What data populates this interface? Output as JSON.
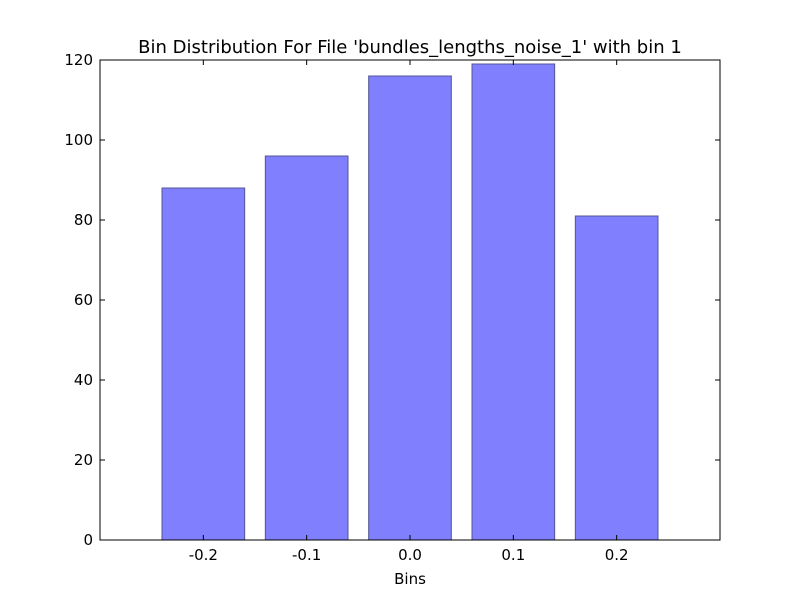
{
  "chart_data": {
    "type": "bar",
    "title": "Bin Distribution For File 'bundles_lengths_noise_1' with bin 1",
    "xlabel": "Bins",
    "ylabel": "",
    "categories": [
      "-0.2",
      "-0.1",
      "0.0",
      "0.1",
      "0.2"
    ],
    "values": [
      88,
      96,
      116,
      119,
      81
    ],
    "ylim": [
      0,
      120
    ],
    "yticks": [
      "0",
      "20",
      "40",
      "60",
      "80",
      "100",
      "120"
    ],
    "grid": false,
    "legend": "none",
    "bar_color": "#8080ff",
    "bar_edge_color": "#555599"
  }
}
